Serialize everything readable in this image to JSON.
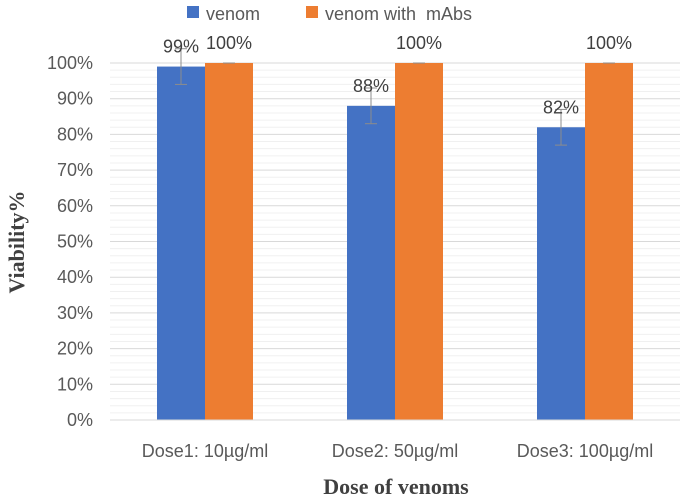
{
  "chart_data": {
    "type": "bar",
    "title": "",
    "xlabel": "Dose of venoms",
    "ylabel": "Viability%",
    "ylim": [
      0,
      100
    ],
    "yticks": [
      0,
      10,
      20,
      30,
      40,
      50,
      60,
      70,
      80,
      90,
      100
    ],
    "ytick_suffix": "%",
    "grid": true,
    "legend_position": "top",
    "categories": [
      "Dose1: 10µg/ml",
      "Dose2: 50µg/ml",
      "Dose3: 100µg/ml"
    ],
    "series": [
      {
        "name": "venom",
        "color": "#4472C4",
        "values": [
          99,
          88,
          82
        ],
        "labels": [
          "99%",
          "88%",
          "82%"
        ],
        "error": [
          5,
          5,
          5
        ]
      },
      {
        "name": "venom with  mAbs",
        "color": "#ED7D31",
        "values": [
          100,
          100,
          100
        ],
        "labels": [
          "100%",
          "100%",
          "100%"
        ],
        "error": [
          0,
          0,
          0
        ]
      }
    ]
  }
}
